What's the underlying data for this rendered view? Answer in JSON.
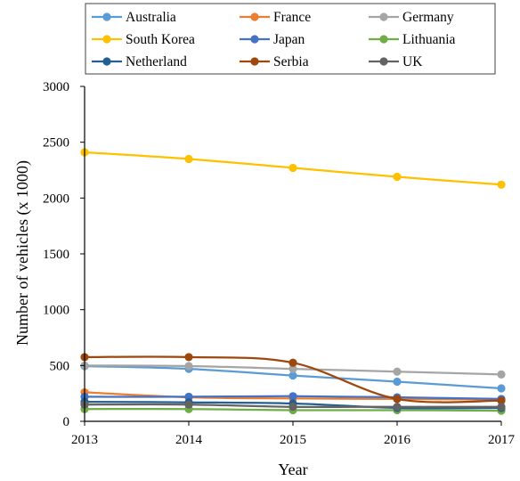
{
  "chart_data": {
    "type": "line",
    "title": "",
    "xlabel": "Year",
    "ylabel": "Number of vehicles (x 1000)",
    "x": [
      2013,
      2014,
      2015,
      2016,
      2017
    ],
    "xlim": [
      2013,
      2017
    ],
    "ylim": [
      0,
      3000
    ],
    "yticks": [
      0,
      500,
      1000,
      1500,
      2000,
      2500,
      3000
    ],
    "grid": false,
    "legend": "top",
    "series": [
      {
        "name": "Australia",
        "color": "#5b9bd5",
        "values": [
          495,
          470,
          410,
          355,
          295
        ]
      },
      {
        "name": "France",
        "color": "#ed7d31",
        "values": [
          260,
          215,
          205,
          200,
          195
        ]
      },
      {
        "name": "Germany",
        "color": "#a5a5a5",
        "values": [
          500,
          495,
          470,
          445,
          420
        ]
      },
      {
        "name": "South Korea",
        "color": "#ffc000",
        "values": [
          2410,
          2350,
          2270,
          2190,
          2120
        ]
      },
      {
        "name": "Japan",
        "color": "#4472c4",
        "values": [
          220,
          220,
          225,
          215,
          200
        ]
      },
      {
        "name": "Lithuania",
        "color": "#70ad47",
        "values": [
          110,
          110,
          100,
          100,
          95
        ]
      },
      {
        "name": "Netherland",
        "color": "#255e91",
        "values": [
          175,
          170,
          160,
          120,
          120
        ]
      },
      {
        "name": "Serbia",
        "color": "#9e480e",
        "values": [
          575,
          575,
          525,
          200,
          185
        ]
      },
      {
        "name": "UK",
        "color": "#636363",
        "values": [
          150,
          150,
          130,
          130,
          130
        ]
      }
    ]
  }
}
